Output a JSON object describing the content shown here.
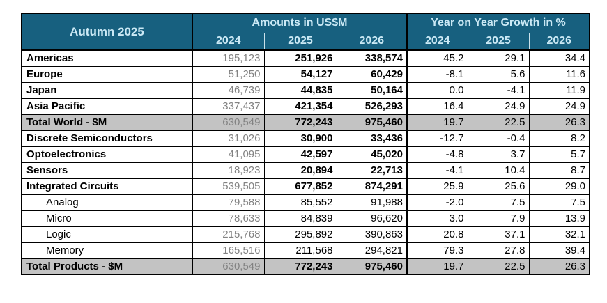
{
  "colors": {
    "header_bg": "#17607F",
    "header_text": "#CBE9F5",
    "total_row_bg": "#C3C3C3",
    "muted_text": "#828282",
    "border": "#000000"
  },
  "table": {
    "title": "Autumn 2025",
    "groups": [
      {
        "label": "Amounts in US$M",
        "years": [
          "2024",
          "2025",
          "2026"
        ]
      },
      {
        "label": "Year on Year Growth in %",
        "years": [
          "2024",
          "2025",
          "2026"
        ]
      }
    ],
    "rows": [
      {
        "type": "bold",
        "label": "Americas",
        "a": [
          "195,123",
          "251,926",
          "338,574"
        ],
        "g": [
          "45.2",
          "29.1",
          "34.4"
        ]
      },
      {
        "type": "bold",
        "label": "Europe",
        "a": [
          "51,250",
          "54,127",
          "60,429"
        ],
        "g": [
          "-8.1",
          "5.6",
          "11.6"
        ]
      },
      {
        "type": "bold",
        "label": "Japan",
        "a": [
          "46,739",
          "44,835",
          "50,164"
        ],
        "g": [
          "0.0",
          "-4.1",
          "11.9"
        ]
      },
      {
        "type": "bold",
        "label": "Asia Pacific",
        "a": [
          "337,437",
          "421,354",
          "526,293"
        ],
        "g": [
          "16.4",
          "24.9",
          "24.9"
        ]
      },
      {
        "type": "total",
        "label": "Total World - $M",
        "a": [
          "630,549",
          "772,243",
          "975,460"
        ],
        "g": [
          "19.7",
          "22.5",
          "26.3"
        ]
      },
      {
        "type": "bold",
        "label": "Discrete Semiconductors",
        "a": [
          "31,026",
          "30,900",
          "33,436"
        ],
        "g": [
          "-12.7",
          "-0.4",
          "8.2"
        ]
      },
      {
        "type": "bold",
        "label": "Optoelectronics",
        "a": [
          "41,095",
          "42,597",
          "45,020"
        ],
        "g": [
          "-4.8",
          "3.7",
          "5.7"
        ]
      },
      {
        "type": "bold",
        "label": "Sensors",
        "a": [
          "18,923",
          "20,894",
          "22,713"
        ],
        "g": [
          "-4.1",
          "10.4",
          "8.7"
        ]
      },
      {
        "type": "bold",
        "label": "Integrated Circuits",
        "a": [
          "539,505",
          "677,852",
          "874,291"
        ],
        "g": [
          "25.9",
          "25.6",
          "29.0"
        ]
      },
      {
        "type": "sub",
        "label": "Analog",
        "a": [
          "79,588",
          "85,552",
          "91,988"
        ],
        "g": [
          "-2.0",
          "7.5",
          "7.5"
        ]
      },
      {
        "type": "sub",
        "label": "Micro",
        "a": [
          "78,633",
          "84,839",
          "96,620"
        ],
        "g": [
          "3.0",
          "7.9",
          "13.9"
        ]
      },
      {
        "type": "sub",
        "label": "Logic",
        "a": [
          "215,768",
          "295,892",
          "390,863"
        ],
        "g": [
          "20.8",
          "37.1",
          "32.1"
        ]
      },
      {
        "type": "sub",
        "label": "Memory",
        "a": [
          "165,516",
          "211,568",
          "294,821"
        ],
        "g": [
          "79.3",
          "27.8",
          "39.4"
        ]
      },
      {
        "type": "total",
        "label": "Total Products - $M",
        "a": [
          "630,549",
          "772,243",
          "975,460"
        ],
        "g": [
          "19.7",
          "22.5",
          "26.3"
        ]
      }
    ]
  },
  "chart_data": {
    "type": "table",
    "title": "Autumn 2025",
    "column_groups": [
      "Amounts in US$M",
      "Year on Year Growth in %"
    ],
    "columns": [
      "Amounts 2024 (US$M)",
      "Amounts 2025 (US$M)",
      "Amounts 2026 (US$M)",
      "Growth 2024 (%)",
      "Growth 2025 (%)",
      "Growth 2026 (%)"
    ],
    "rows": [
      {
        "label": "Americas",
        "amounts_usm": [
          195123,
          251926,
          338574
        ],
        "growth_pct": [
          45.2,
          29.1,
          34.4
        ]
      },
      {
        "label": "Europe",
        "amounts_usm": [
          51250,
          54127,
          60429
        ],
        "growth_pct": [
          -8.1,
          5.6,
          11.6
        ]
      },
      {
        "label": "Japan",
        "amounts_usm": [
          46739,
          44835,
          50164
        ],
        "growth_pct": [
          0.0,
          -4.1,
          11.9
        ]
      },
      {
        "label": "Asia Pacific",
        "amounts_usm": [
          337437,
          421354,
          526293
        ],
        "growth_pct": [
          16.4,
          24.9,
          24.9
        ]
      },
      {
        "label": "Total World - $M",
        "amounts_usm": [
          630549,
          772243,
          975460
        ],
        "growth_pct": [
          19.7,
          22.5,
          26.3
        ]
      },
      {
        "label": "Discrete Semiconductors",
        "amounts_usm": [
          31026,
          30900,
          33436
        ],
        "growth_pct": [
          -12.7,
          -0.4,
          8.2
        ]
      },
      {
        "label": "Optoelectronics",
        "amounts_usm": [
          41095,
          42597,
          45020
        ],
        "growth_pct": [
          -4.8,
          3.7,
          5.7
        ]
      },
      {
        "label": "Sensors",
        "amounts_usm": [
          18923,
          20894,
          22713
        ],
        "growth_pct": [
          -4.1,
          10.4,
          8.7
        ]
      },
      {
        "label": "Integrated Circuits",
        "amounts_usm": [
          539505,
          677852,
          874291
        ],
        "growth_pct": [
          25.9,
          25.6,
          29.0
        ]
      },
      {
        "label": "Analog",
        "amounts_usm": [
          79588,
          85552,
          91988
        ],
        "growth_pct": [
          -2.0,
          7.5,
          7.5
        ]
      },
      {
        "label": "Micro",
        "amounts_usm": [
          78633,
          84839,
          96620
        ],
        "growth_pct": [
          3.0,
          7.9,
          13.9
        ]
      },
      {
        "label": "Logic",
        "amounts_usm": [
          215768,
          295892,
          390863
        ],
        "growth_pct": [
          20.8,
          37.1,
          32.1
        ]
      },
      {
        "label": "Memory",
        "amounts_usm": [
          165516,
          211568,
          294821
        ],
        "growth_pct": [
          79.3,
          27.8,
          39.4
        ]
      },
      {
        "label": "Total Products - $M",
        "amounts_usm": [
          630549,
          772243,
          975460
        ],
        "growth_pct": [
          19.7,
          22.5,
          26.3
        ]
      }
    ]
  }
}
